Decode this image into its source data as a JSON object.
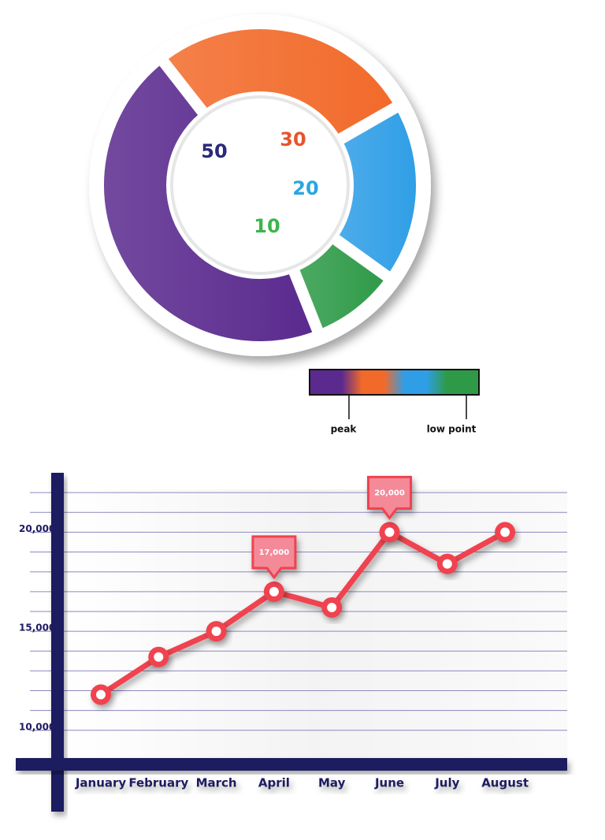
{
  "chart_data": [
    {
      "type": "donut",
      "values": [
        50,
        30,
        20,
        10
      ],
      "colors": [
        "#5a2a8e",
        "#f26a2a",
        "#2f9ee6",
        "#2e9a48"
      ],
      "label_colors": [
        "#2a2a7a",
        "#e8542a",
        "#2aa6e0",
        "#3cb54a"
      ],
      "scale_labels": [
        "peak",
        "low point"
      ]
    },
    {
      "type": "line",
      "categories": [
        "January",
        "February",
        "March",
        "April",
        "May",
        "June",
        "July",
        "August"
      ],
      "values": [
        11800,
        13700,
        15000,
        17000,
        16200,
        20000,
        18400,
        20000
      ],
      "value_labels": [
        null,
        null,
        null,
        "17,000",
        null,
        "20,000",
        null,
        null
      ],
      "color": "#f0424f",
      "ylim": [
        8600,
        23000
      ],
      "yticks": [
        {
          "value": 10000,
          "label": "10,000"
        },
        {
          "value": 15000,
          "label": "15,000"
        },
        {
          "value": 20000,
          "label": "20,000"
        }
      ],
      "grid_yticks": [
        10000,
        11000,
        12000,
        13000,
        14000,
        15000,
        16000,
        17000,
        18000,
        19000,
        20000,
        21000,
        22000
      ],
      "grid": true
    }
  ]
}
